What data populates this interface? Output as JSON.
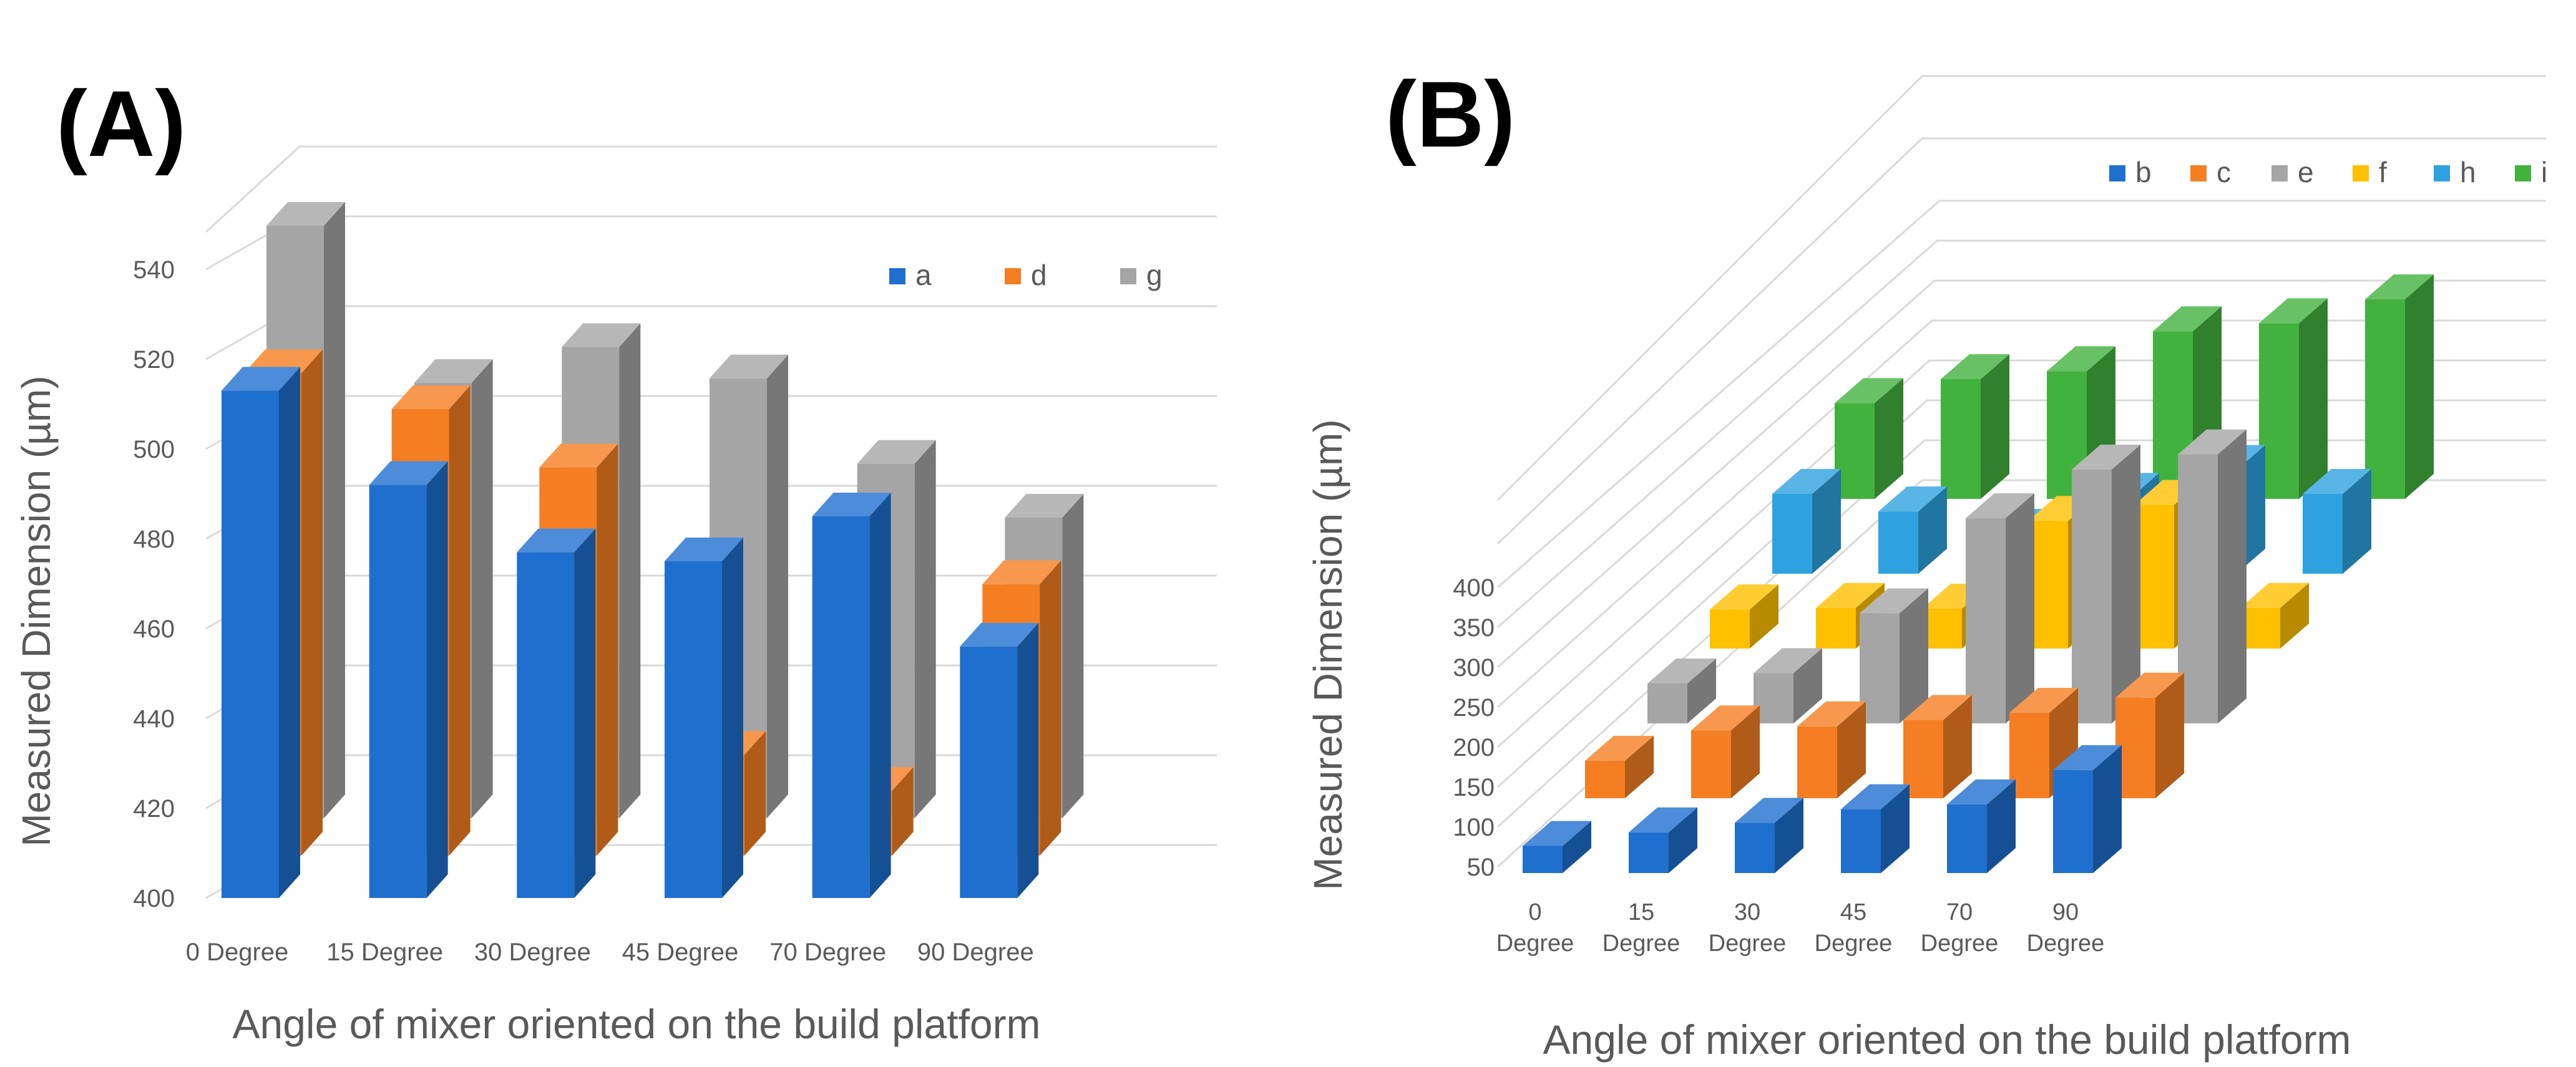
{
  "chart_data": [
    {
      "type": "bar",
      "panel_label": "(A)",
      "categories": [
        "0 Degree",
        "15 Degree",
        "30 Degree",
        "45 Degree",
        "70 Degree",
        "90 Degree"
      ],
      "series": [
        {
          "name": "a",
          "color": "#1f6fce",
          "values": [
            513,
            492,
            477,
            475,
            485,
            456
          ]
        },
        {
          "name": "d",
          "color": "#f57e22",
          "values": [
            513,
            505,
            492,
            428,
            420,
            466
          ]
        },
        {
          "name": "g",
          "color": "#a5a5a5",
          "values": [
            540,
            505,
            513,
            506,
            487,
            475
          ]
        }
      ],
      "xlabel": "Angle of mixer oriented on the build platform",
      "ylabel": "Measured Dimension (µm)",
      "yticks": [
        400,
        420,
        440,
        460,
        480,
        500,
        520,
        540
      ],
      "ylim": [
        400,
        550
      ],
      "grid": true,
      "legend": "top-right",
      "projection": "3d-clustered"
    },
    {
      "type": "bar",
      "panel_label": "(B)",
      "categories": [
        "0 Degree",
        "15 Degree",
        "30 Degree",
        "45 Degree",
        "70 Degree",
        "90 Degree"
      ],
      "series": [
        {
          "name": "b",
          "color": "#1f6fce",
          "values": [
            84,
            101,
            113,
            130,
            136,
            179
          ]
        },
        {
          "name": "c",
          "color": "#f57e22",
          "values": [
            97,
            135,
            140,
            148,
            157,
            176
          ]
        },
        {
          "name": "e",
          "color": "#a5a5a5",
          "values": [
            100,
            113,
            188,
            307,
            368,
            387
          ]
        },
        {
          "name": "f",
          "color": "#ffc000",
          "values": [
            99,
            101,
            100,
            210,
            230,
            101
          ]
        },
        {
          "name": "h",
          "color": "#2ea2e0",
          "values": [
            150,
            128,
            100,
            145,
            180,
            150
          ]
        },
        {
          "name": "i",
          "color": "#42b23e",
          "values": [
            170,
            200,
            210,
            260,
            270,
            300
          ]
        }
      ],
      "xlabel": "Angle of mixer oriented on the build platform",
      "ylabel": "Measured Dimension (µm)",
      "yticks": [
        50,
        100,
        150,
        200,
        250,
        300,
        350,
        400
      ],
      "ylim": [
        50,
        400
      ],
      "grid": true,
      "legend": "top-right",
      "projection": "3d-depth"
    }
  ]
}
